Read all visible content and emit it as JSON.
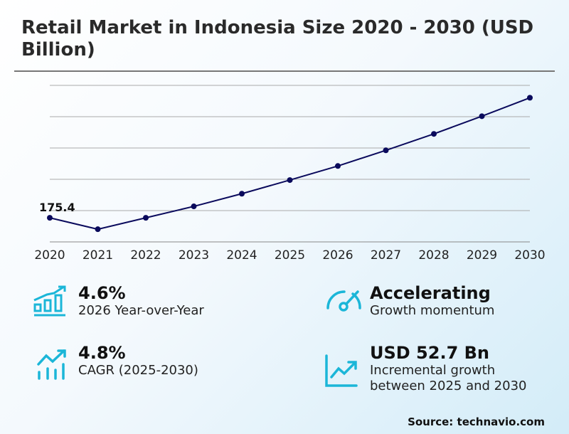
{
  "title": "Retail Market in Indonesia Size 2020 - 2030 (USD Billion)",
  "chart_data": {
    "type": "line",
    "title": "Retail Market in Indonesia Size 2020 - 2030 (USD Billion)",
    "categories": [
      "2020",
      "2021",
      "2022",
      "2023",
      "2024",
      "2025",
      "2026",
      "2027",
      "2028",
      "2029",
      "2030"
    ],
    "series": [
      {
        "values": [
          175.4,
          168.1,
          175.4,
          182.7,
          190.8,
          199.5,
          208.5,
          218.5,
          229.0,
          240.3,
          252.1
        ]
      }
    ],
    "data_labels": [
      {
        "index": 0,
        "text": "175.4"
      }
    ],
    "ylim": [
      160,
      260
    ],
    "grid": true,
    "line_color": "#0a0a5c"
  },
  "kpis": [
    {
      "value": "4.6%",
      "label": "2026 Year-over-Year",
      "icon": "bar-chart-growth-icon"
    },
    {
      "value": "Accelerating",
      "label": "Growth momentum",
      "icon": "speedometer-icon"
    },
    {
      "value": "4.8%",
      "label": "CAGR (2025-2030)",
      "icon": "trend-up-bars-icon"
    },
    {
      "value": "USD 52.7 Bn",
      "label": "Incremental growth",
      "label2": "between 2025 and 2030",
      "icon": "line-chart-up-icon"
    }
  ],
  "accent_color": "#1bb6d8",
  "source": "Source: technavio.com"
}
